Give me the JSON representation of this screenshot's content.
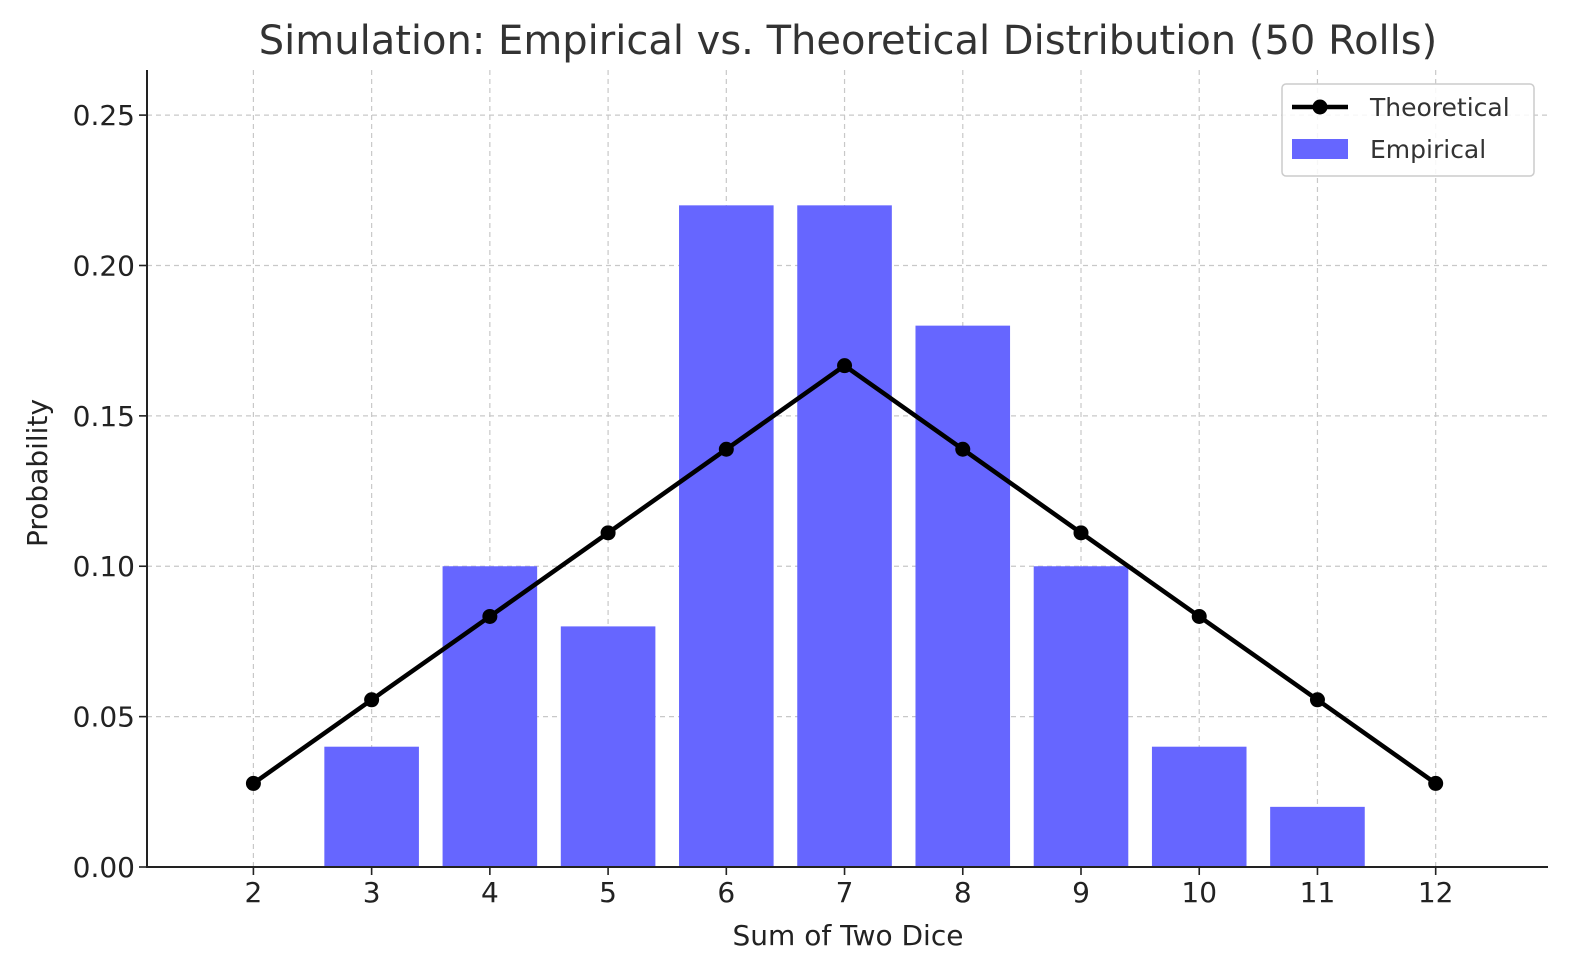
{
  "chart_data": {
    "type": "bar",
    "title": "Simulation: Empirical vs. Theoretical Distribution (50 Rolls)",
    "xlabel": "Sum of Two Dice",
    "ylabel": "Probability",
    "categories": [
      "2",
      "3",
      "4",
      "5",
      "6",
      "7",
      "8",
      "9",
      "10",
      "11",
      "12"
    ],
    "x": [
      2,
      3,
      4,
      5,
      6,
      7,
      8,
      9,
      10,
      11,
      12
    ],
    "xlim": [
      1.1,
      12.95
    ],
    "ylim": [
      0,
      0.265
    ],
    "yticks": [
      0.0,
      0.05,
      0.1,
      0.15,
      0.2,
      0.25
    ],
    "ytick_labels": [
      "0.00",
      "0.05",
      "0.10",
      "0.15",
      "0.20",
      "0.25"
    ],
    "grid": true,
    "legend_position": "top-right",
    "series": [
      {
        "name": "Empirical",
        "kind": "bar",
        "color": "#6666ff",
        "values": [
          0.0,
          0.04,
          0.1,
          0.08,
          0.22,
          0.22,
          0.18,
          0.1,
          0.04,
          0.02,
          0.0
        ]
      },
      {
        "name": "Theoretical",
        "kind": "line",
        "marker": "circle",
        "color": "#000000",
        "values": [
          0.0278,
          0.0556,
          0.0833,
          0.1111,
          0.1389,
          0.1667,
          0.1389,
          0.1111,
          0.0833,
          0.0556,
          0.0278
        ]
      }
    ]
  }
}
